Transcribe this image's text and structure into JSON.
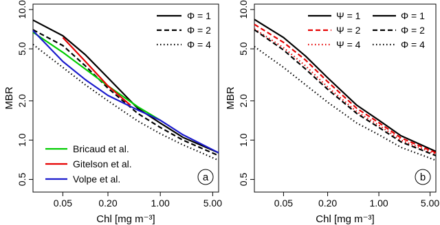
{
  "chart_data": [
    {
      "type": "line",
      "panel_label": "a",
      "xlabel": "Chl [mg m⁻³]",
      "ylabel": "MBR",
      "xscale": "log",
      "yscale": "log",
      "xlim": [
        0.02,
        6.0
      ],
      "ylim": [
        0.4,
        11.0
      ],
      "xticks": [
        {
          "v": 0.05,
          "label": "0.05"
        },
        {
          "v": 0.2,
          "label": "0.20"
        },
        {
          "v": 1.0,
          "label": "1.00"
        },
        {
          "v": 5.0,
          "label": "5.00"
        }
      ],
      "yticks": [
        {
          "v": 0.5,
          "label": "0.5"
        },
        {
          "v": 1.0,
          "label": "1.0"
        },
        {
          "v": 2.0,
          "label": "2.0"
        },
        {
          "v": 5.0,
          "label": "5.0"
        },
        {
          "v": 10.0,
          "label": "10.0"
        }
      ],
      "legends": [
        {
          "position": "top-right",
          "entries": [
            {
              "label": "Φ = 1",
              "color": "#000000",
              "dash": "solid"
            },
            {
              "label": "Φ = 2",
              "color": "#000000",
              "dash": "dashed"
            },
            {
              "label": "Φ = 4",
              "color": "#000000",
              "dash": "dotted"
            }
          ]
        },
        {
          "position": "bottom-left",
          "entries": [
            {
              "label": "Bricaud et al.",
              "color": "#00cc00",
              "dash": "solid"
            },
            {
              "label": "Gitelson et al.",
              "color": "#e60000",
              "dash": "solid"
            },
            {
              "label": "Volpe et al.",
              "color": "#1a1acc",
              "dash": "solid"
            }
          ]
        }
      ],
      "series": [
        {
          "name": "Φ = 1",
          "color": "#000000",
          "dash": "solid",
          "x": [
            0.02,
            0.05,
            0.1,
            0.2,
            0.5,
            1.0,
            2.0,
            6.0
          ],
          "y": [
            8.3,
            6.3,
            4.5,
            3.0,
            1.75,
            1.35,
            1.05,
            0.8
          ]
        },
        {
          "name": "Φ = 2",
          "color": "#000000",
          "dash": "dashed",
          "x": [
            0.02,
            0.05,
            0.1,
            0.2,
            0.5,
            1.0,
            2.0,
            6.0
          ],
          "y": [
            7.0,
            5.3,
            3.7,
            2.5,
            1.6,
            1.25,
            1.0,
            0.76
          ]
        },
        {
          "name": "Φ = 4",
          "color": "#000000",
          "dash": "dotted",
          "x": [
            0.02,
            0.05,
            0.1,
            0.2,
            0.5,
            1.0,
            2.0,
            6.0
          ],
          "y": [
            5.4,
            3.6,
            2.65,
            2.0,
            1.4,
            1.12,
            0.92,
            0.7
          ]
        },
        {
          "name": "Bricaud et al.",
          "color": "#00cc00",
          "dash": "solid",
          "x": [
            0.02,
            0.05,
            0.1,
            0.2,
            0.5,
            1.0
          ],
          "y": [
            6.7,
            4.7,
            3.5,
            2.6,
            1.8,
            1.42
          ]
        },
        {
          "name": "Gitelson et al.",
          "color": "#e60000",
          "dash": "solid",
          "x": [
            0.05,
            0.1,
            0.2,
            0.4
          ],
          "y": [
            6.1,
            4.0,
            2.6,
            1.85
          ]
        },
        {
          "name": "Volpe et al.",
          "color": "#1a1acc",
          "dash": "solid",
          "x": [
            0.02,
            0.05,
            0.1,
            0.2,
            0.5,
            1.0,
            2.0,
            6.0
          ],
          "y": [
            6.9,
            4.0,
            2.9,
            2.2,
            1.7,
            1.42,
            1.1,
            0.8
          ]
        }
      ]
    },
    {
      "type": "line",
      "panel_label": "b",
      "xlabel": "Chl [mg m⁻³]",
      "ylabel": "MBR",
      "xscale": "log",
      "yscale": "log",
      "xlim": [
        0.02,
        6.0
      ],
      "ylim": [
        0.4,
        11.0
      ],
      "xticks": [
        {
          "v": 0.05,
          "label": "0.05"
        },
        {
          "v": 0.2,
          "label": "0.20"
        },
        {
          "v": 1.0,
          "label": "1.00"
        },
        {
          "v": 5.0,
          "label": "5.00"
        }
      ],
      "yticks": [
        {
          "v": 0.5,
          "label": "0.5"
        },
        {
          "v": 1.0,
          "label": "1.0"
        },
        {
          "v": 2.0,
          "label": "2.0"
        },
        {
          "v": 5.0,
          "label": "5.0"
        },
        {
          "v": 10.0,
          "label": "10.0"
        }
      ],
      "legends": [
        {
          "position": "top-right",
          "entries": [
            {
              "label": "Ψ = 1",
              "color": "#000000",
              "dash": "solid"
            },
            {
              "label": "Ψ = 2",
              "color": "#e60000",
              "dash": "dashed"
            },
            {
              "label": "Ψ = 4",
              "color": "#e60000",
              "dash": "dotted"
            },
            {
              "label": "Φ = 1",
              "color": "#000000",
              "dash": "solid"
            },
            {
              "label": "Φ = 2",
              "color": "#000000",
              "dash": "dashed"
            },
            {
              "label": "Φ = 4",
              "color": "#000000",
              "dash": "dotted"
            }
          ]
        }
      ],
      "series": [
        {
          "name": "Ψ = 1",
          "color": "#000000",
          "dash": "solid",
          "x": [
            0.02,
            0.05,
            0.1,
            0.2,
            0.5,
            1.0,
            2.0,
            6.0
          ],
          "y": [
            8.4,
            6.1,
            4.4,
            3.0,
            1.85,
            1.42,
            1.08,
            0.82
          ]
        },
        {
          "name": "Ψ = 2",
          "color": "#e60000",
          "dash": "dashed",
          "x": [
            0.02,
            0.05,
            0.1,
            0.2,
            0.5,
            1.0,
            2.0,
            6.0
          ],
          "y": [
            7.7,
            5.6,
            4.1,
            2.8,
            1.75,
            1.36,
            1.04,
            0.8
          ]
        },
        {
          "name": "Ψ = 4",
          "color": "#e60000",
          "dash": "dotted",
          "x": [
            0.02,
            0.05,
            0.1,
            0.2,
            0.5,
            1.0,
            2.0,
            6.0
          ],
          "y": [
            7.1,
            5.1,
            3.7,
            2.55,
            1.65,
            1.3,
            1.0,
            0.78
          ]
        },
        {
          "name": "Φ = 2",
          "color": "#000000",
          "dash": "dashed",
          "x": [
            0.02,
            0.05,
            0.1,
            0.2,
            0.5,
            1.0,
            2.0,
            6.0
          ],
          "y": [
            7.0,
            4.9,
            3.5,
            2.45,
            1.6,
            1.25,
            0.97,
            0.76
          ]
        },
        {
          "name": "Φ = 4",
          "color": "#000000",
          "dash": "dotted",
          "x": [
            0.02,
            0.05,
            0.1,
            0.2,
            0.5,
            1.0,
            2.0,
            6.0
          ],
          "y": [
            5.2,
            3.6,
            2.65,
            1.95,
            1.35,
            1.1,
            0.88,
            0.7
          ]
        }
      ]
    }
  ]
}
